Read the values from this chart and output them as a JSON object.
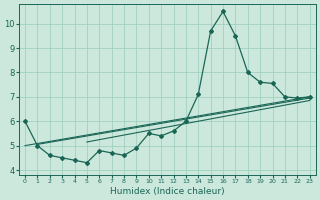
{
  "xlabel": "Humidex (Indice chaleur)",
  "bg_color": "#cce8dd",
  "grid_color": "#99ccbb",
  "line_color": "#1a6655",
  "xlim": [
    -0.5,
    23.5
  ],
  "ylim": [
    3.8,
    10.8
  ],
  "xticks": [
    0,
    1,
    2,
    3,
    4,
    5,
    6,
    7,
    8,
    9,
    10,
    11,
    12,
    13,
    14,
    15,
    16,
    17,
    18,
    19,
    20,
    21,
    22,
    23
  ],
  "yticks": [
    4,
    5,
    6,
    7,
    8,
    9,
    10
  ],
  "line1_x": [
    0,
    1,
    2,
    3,
    4,
    5,
    6,
    7,
    8,
    9,
    10,
    11,
    12,
    13,
    14,
    15,
    16,
    17,
    18,
    19,
    20,
    21,
    22,
    23
  ],
  "line1_y": [
    6.0,
    5.0,
    4.6,
    4.5,
    4.4,
    4.3,
    4.8,
    4.7,
    4.6,
    4.9,
    5.5,
    5.4,
    5.6,
    6.0,
    7.1,
    9.7,
    10.5,
    9.5,
    8.0,
    7.6,
    7.55,
    7.0,
    6.95,
    7.0
  ],
  "line2_x": [
    0,
    23
  ],
  "line2_y": [
    5.0,
    7.0
  ],
  "line3_x": [
    1,
    23
  ],
  "line3_y": [
    5.05,
    6.95
  ],
  "line4_x": [
    5,
    23
  ],
  "line4_y": [
    5.15,
    6.85
  ]
}
